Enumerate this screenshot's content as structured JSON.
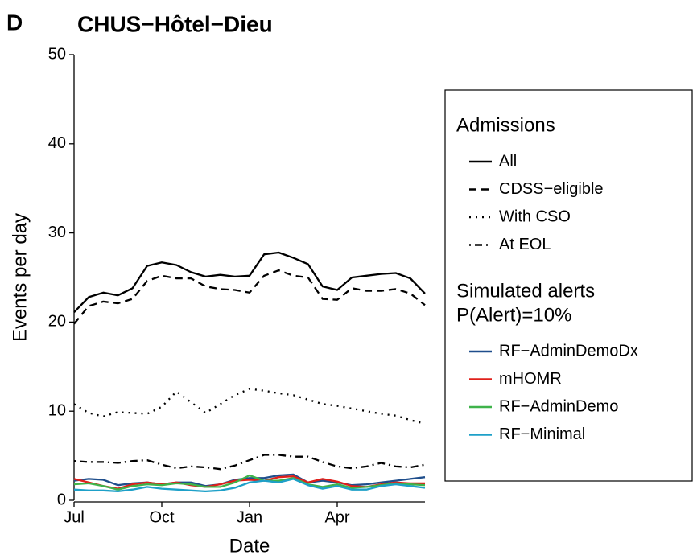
{
  "chart_data": {
    "type": "line",
    "panel_label": "D",
    "title": "CHUS−Hôtel−Dieu",
    "x_label": "Date",
    "y_label": "Events per day",
    "x": [
      0,
      0.5,
      1,
      1.5,
      2,
      2.5,
      3,
      3.5,
      4,
      4.5,
      5,
      5.5,
      6,
      6.5,
      7,
      7.5,
      8,
      8.5,
      9,
      9.5,
      10,
      10.5,
      11,
      11.5,
      12
    ],
    "xlim": [
      0,
      12
    ],
    "xticks": [
      {
        "value": 0,
        "label": "Jul"
      },
      {
        "value": 3,
        "label": "Oct"
      },
      {
        "value": 6,
        "label": "Jan"
      },
      {
        "value": 9,
        "label": "Apr"
      }
    ],
    "ylim": [
      0,
      50
    ],
    "yticks": [
      0,
      10,
      20,
      30,
      40,
      50
    ],
    "grid": false,
    "legend_titles": [
      [
        "Admissions"
      ],
      [
        "Simulated alerts",
        "P(Alert)=10%"
      ]
    ],
    "series": [
      {
        "name": "All",
        "color": "#000000",
        "dash": "solid",
        "values": [
          21.1,
          22.8,
          23.3,
          23.0,
          23.8,
          26.3,
          26.7,
          26.4,
          25.6,
          25.1,
          25.3,
          25.1,
          25.2,
          27.6,
          27.8,
          27.2,
          26.5,
          24.0,
          23.6,
          25.0,
          25.2,
          25.4,
          25.5,
          24.9,
          23.2
        ]
      },
      {
        "name": "CDSS−eligible",
        "color": "#000000",
        "dash": "dashed",
        "values": [
          19.8,
          21.8,
          22.3,
          22.1,
          22.6,
          24.6,
          25.2,
          24.9,
          24.9,
          24.0,
          23.7,
          23.6,
          23.3,
          25.2,
          25.8,
          25.2,
          25.0,
          22.6,
          22.5,
          23.8,
          23.5,
          23.5,
          23.7,
          23.2,
          21.9
        ]
      },
      {
        "name": "With CSO",
        "color": "#000000",
        "dash": "dotted",
        "values": [
          10.8,
          9.8,
          9.4,
          9.9,
          9.8,
          9.7,
          10.5,
          12.2,
          11.0,
          9.8,
          10.8,
          11.8,
          12.5,
          12.3,
          12.0,
          11.8,
          11.3,
          10.8,
          10.6,
          10.3,
          10.0,
          9.7,
          9.5,
          9.0,
          8.6
        ]
      },
      {
        "name": "At EOL",
        "color": "#000000",
        "dash": "dotdash",
        "values": [
          4.4,
          4.3,
          4.3,
          4.2,
          4.4,
          4.5,
          4.0,
          3.6,
          3.8,
          3.7,
          3.5,
          3.9,
          4.5,
          5.1,
          5.1,
          4.9,
          4.9,
          4.3,
          3.8,
          3.6,
          3.8,
          4.2,
          3.8,
          3.7,
          4.0
        ]
      },
      {
        "name": "RF−AdminDemoDx",
        "color": "#1f4e8c",
        "dash": "solid",
        "values": [
          2.2,
          2.4,
          2.3,
          1.7,
          1.9,
          2.0,
          1.8,
          2.0,
          2.0,
          1.6,
          1.8,
          2.3,
          2.5,
          2.5,
          2.8,
          2.9,
          2.0,
          2.2,
          2.0,
          1.7,
          1.8,
          2.0,
          2.2,
          2.4,
          2.6
        ]
      },
      {
        "name": "mHOMR",
        "color": "#e0201b",
        "dash": "solid",
        "values": [
          2.4,
          2.0,
          1.6,
          1.3,
          1.8,
          2.0,
          1.8,
          2.0,
          1.7,
          1.5,
          1.8,
          2.2,
          2.3,
          2.2,
          2.6,
          2.7,
          2.0,
          2.4,
          2.1,
          1.6,
          1.5,
          1.8,
          2.0,
          1.9,
          1.9
        ]
      },
      {
        "name": "RF−AdminDemo",
        "color": "#3fb34a",
        "dash": "solid",
        "values": [
          1.8,
          1.9,
          1.6,
          1.2,
          1.6,
          1.8,
          1.7,
          1.9,
          1.8,
          1.5,
          1.5,
          2.0,
          2.8,
          2.2,
          2.2,
          2.5,
          1.8,
          1.5,
          1.8,
          1.4,
          1.5,
          1.7,
          1.9,
          1.8,
          1.7
        ]
      },
      {
        "name": "RF−Minimal",
        "color": "#1ea0c8",
        "dash": "solid",
        "values": [
          1.2,
          1.1,
          1.1,
          1.0,
          1.2,
          1.5,
          1.3,
          1.2,
          1.1,
          1.0,
          1.1,
          1.4,
          2.0,
          2.2,
          2.0,
          2.4,
          1.7,
          1.3,
          1.6,
          1.2,
          1.2,
          1.6,
          1.8,
          1.6,
          1.4
        ]
      }
    ]
  }
}
